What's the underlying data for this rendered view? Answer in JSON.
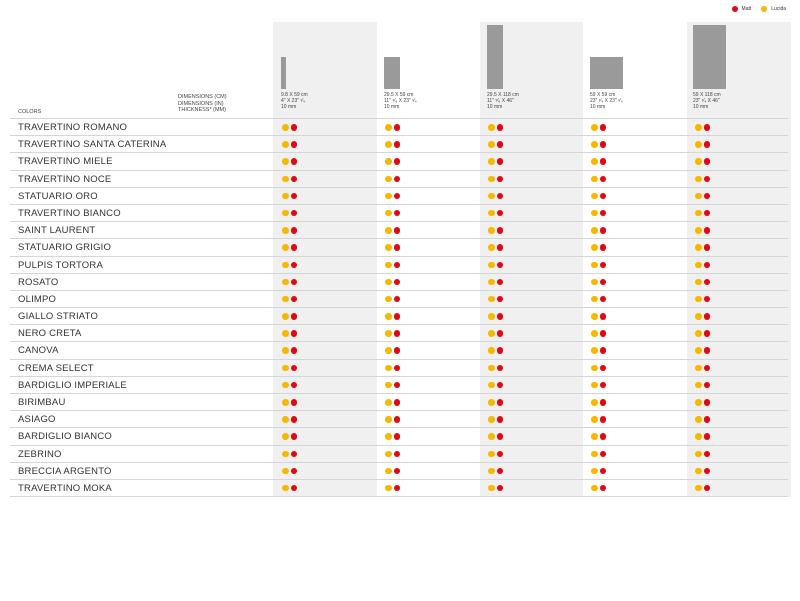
{
  "legend": [
    {
      "label": "Matt",
      "color": "#e30613"
    },
    {
      "label": "Lucida",
      "color": "#f7b900"
    }
  ],
  "header": {
    "colors_label": "COLORS",
    "dims_labels": [
      "DIMENSIONS (CM)",
      "DIMENSIONS (IN)",
      "THICKNESS* (MM)"
    ]
  },
  "formats": [
    {
      "cm": "9.8 X 59 cm",
      "in": "4\" X 23\" ¹⁄₄",
      "mm": "10 mm"
    },
    {
      "cm": "29.5 X 59 cm",
      "in": "11\" ⁵⁄₈ X 23\" ¹⁄₄",
      "mm": "10 mm"
    },
    {
      "cm": "29.5 X 118 cm",
      "in": "11\" ⁵⁄₈ X 46\"",
      "mm": "10 mm"
    },
    {
      "cm": "59 X 59 cm",
      "in": "23\" ¹⁄₄ X 23\" ¹⁄₄",
      "mm": "10 mm"
    },
    {
      "cm": "59 X 118 cm",
      "in": "23\" ¹⁄₄ X 46\"",
      "mm": "10 mm"
    }
  ],
  "colors": [
    "TRAVERTINO ROMANO",
    "TRAVERTINO SANTA CATERINA",
    "TRAVERTINO MIELE",
    "TRAVERTINO NOCE",
    "STATUARIO ORO",
    "TRAVERTINO BIANCO",
    "SAINT LAURENT",
    "STATUARIO GRIGIO",
    "PULPIS TORTORA",
    "ROSATO",
    "OLIMPO",
    "GIALLO STRIATO",
    "NERO CRETA",
    "CANOVA",
    "CREMA SELECT",
    "BARDIGLIO IMPERIALE",
    "BIRIMBAU",
    "ASIAGO",
    "BARDIGLIO BIANCO",
    "ZEBRINO",
    "BRECCIA ARGENTO",
    "TRAVERTINO MOKA"
  ],
  "availability": "both finishes available for every color in every format"
}
